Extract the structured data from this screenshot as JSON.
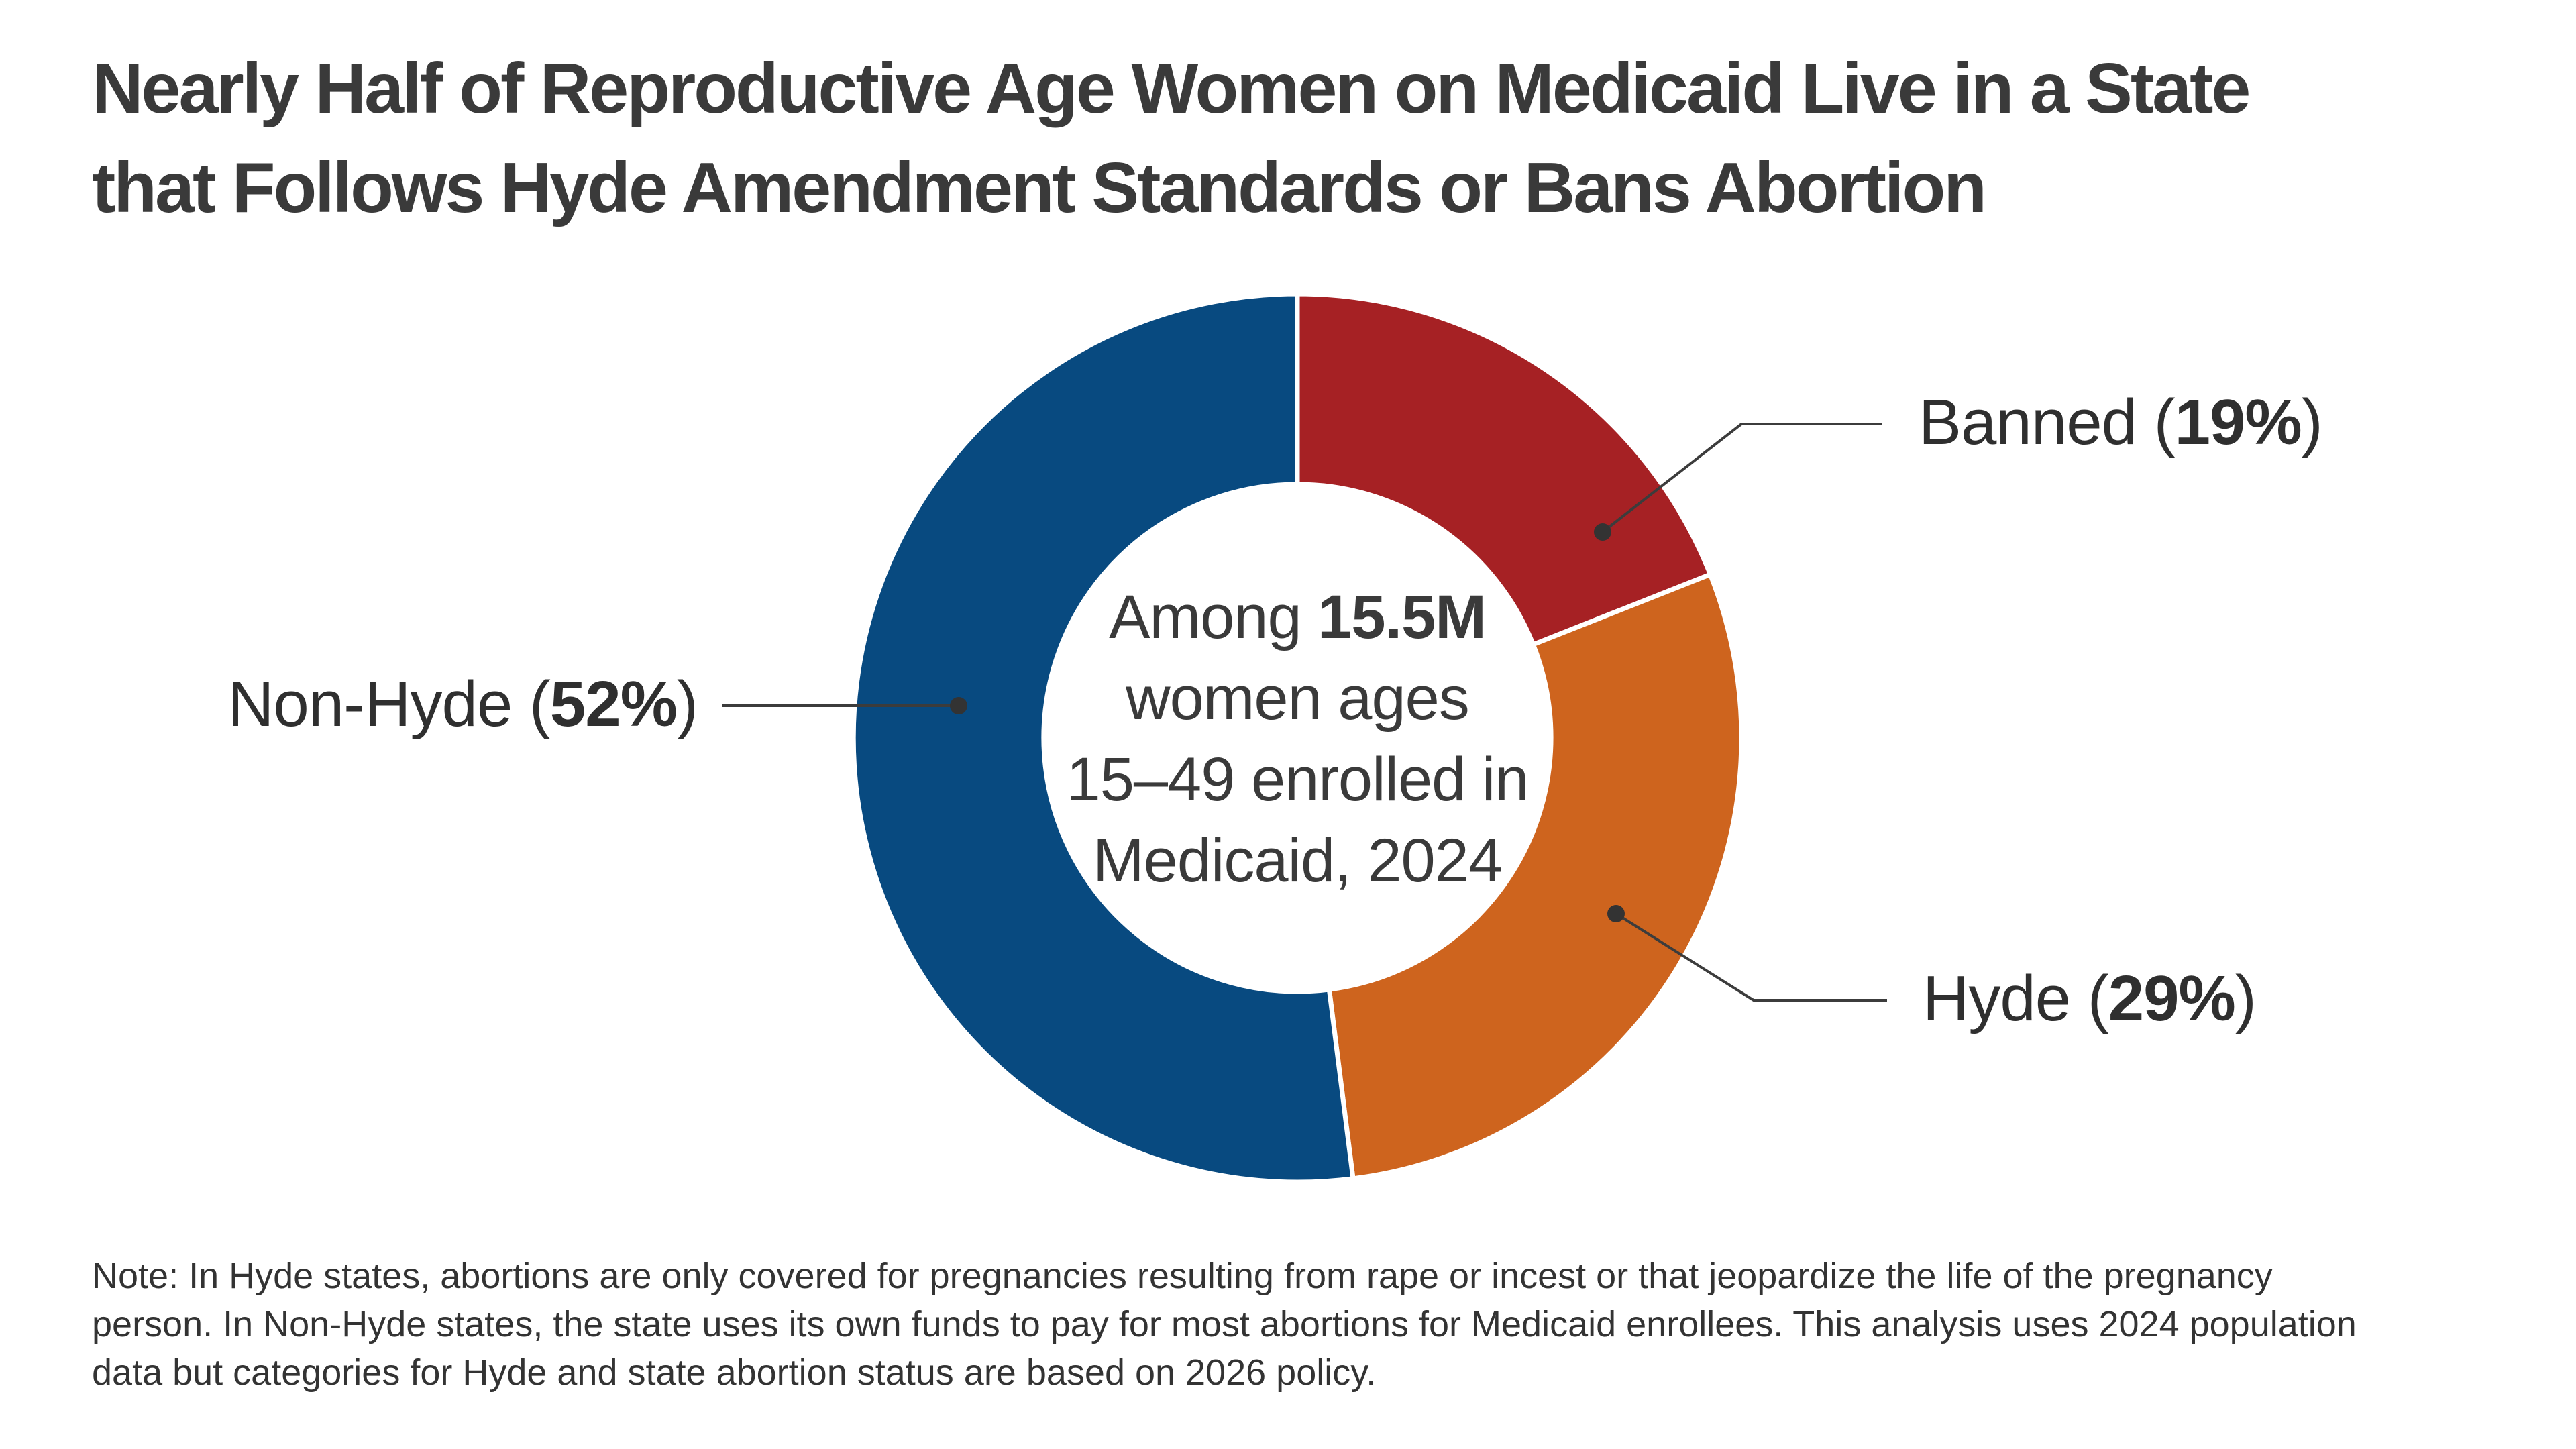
{
  "header": {
    "title_line1": "Nearly Half of Reproductive Age Women on Medicaid Live in a State",
    "title_line2": "that Follows Hyde Amendment Standards or Bans Abortion"
  },
  "center_label": {
    "line1_prefix": "Among ",
    "line1_bold": "15.5M",
    "line2": "women ages",
    "line3": "15–49 enrolled in",
    "line4": "Medicaid, 2024"
  },
  "labels": {
    "banned": {
      "prefix": "Banned (",
      "value": "19%",
      "suffix": ")"
    },
    "hyde": {
      "prefix": "Hyde (",
      "value": "29%",
      "suffix": ")"
    },
    "non_hyde": {
      "prefix": "Non-Hyde (",
      "value": "52%",
      "suffix": ")"
    }
  },
  "note": {
    "line1": "Note: In Hyde states, abortions are only covered for pregnancies resulting from rape or incest or that jeopardize the life of the pregnancy",
    "line2": "person. In Non-Hyde states, the state uses its own funds to pay for most abortions for Medicaid enrollees. This analysis uses 2024 population",
    "line3": "data but categories for Hyde and state abortion status are based on 2026 policy."
  },
  "colors": {
    "banned_red": "#a62124",
    "hyde_orange": "#ce641e",
    "non_hyde_blue": "#084a80",
    "text_dark": "#3a3a3a",
    "leader_line": "#3c3c3c",
    "background": "#ffffff"
  },
  "chart_data": {
    "type": "pie",
    "subtype": "donut",
    "title": "Nearly Half of Reproductive Age Women on Medicaid Live in a State that Follows Hyde Amendment Standards or Bans Abortion",
    "categories": [
      "Banned",
      "Hyde",
      "Non-Hyde"
    ],
    "values": [
      19,
      29,
      52
    ],
    "unit": "%",
    "colors": [
      "#a62124",
      "#ce641e",
      "#084a80"
    ],
    "start_angle_deg": 0,
    "direction": "clockwise",
    "donut_hole_ratio": 0.57,
    "center_label": "Among 15.5M women ages 15–49 enrolled in Medicaid, 2024",
    "note": "Note: In Hyde states, abortions are only covered for pregnancies resulting from rape or incest or that jeopardize the life of the pregnancy person. In Non-Hyde states, the state uses its own funds to pay for most abortions for Medicaid enrollees. This analysis uses 2024 population data but categories for Hyde and state abortion status are based on 2026 policy.",
    "legend_position": "none",
    "grid": false
  }
}
